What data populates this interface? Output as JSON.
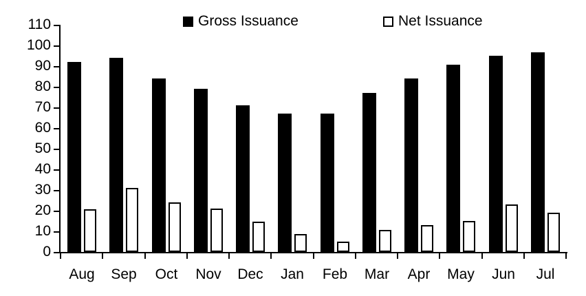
{
  "chart_data": {
    "type": "bar",
    "title": "",
    "xlabel": "",
    "ylabel": "",
    "categories": [
      "Aug",
      "Sep",
      "Oct",
      "Nov",
      "Dec",
      "Jan",
      "Feb",
      "Mar",
      "Apr",
      "May",
      "Jun",
      "Jul"
    ],
    "series": [
      {
        "name": "Gross Issuance",
        "style": "filled-black",
        "values": [
          92,
          94,
          84,
          79,
          71,
          67,
          67,
          77,
          84,
          90.5,
          95,
          96.5
        ]
      },
      {
        "name": "Net Issuance",
        "style": "outlined-white",
        "values": [
          20.5,
          31,
          24,
          21,
          14.5,
          8.5,
          5,
          10.5,
          13,
          15,
          23,
          19
        ]
      }
    ],
    "ylim": [
      0,
      110
    ],
    "ytick_step": 10,
    "ytick_labels": [
      "0",
      "10",
      "20",
      "30",
      "40",
      "50",
      "60",
      "70",
      "80",
      "90",
      "100",
      "110"
    ],
    "grid": false,
    "legend_position": "top"
  },
  "colors": {
    "gross_fill": "#000000",
    "net_fill": "#ffffff",
    "net_border": "#000000",
    "axis": "#000000",
    "text": "#000000",
    "background": "#ffffff"
  }
}
